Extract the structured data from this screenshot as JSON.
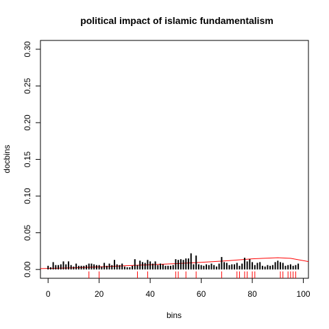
{
  "chart_data": {
    "type": "bar",
    "title": "political impact of islamic fundamentalism",
    "xlabel": "bins",
    "ylabel": "docbins",
    "xlim": [
      -3,
      102
    ],
    "ylim": [
      -0.012,
      0.312
    ],
    "xticks": [
      0,
      20,
      40,
      60,
      80,
      100
    ],
    "yticks": [
      0.0,
      0.05,
      0.1,
      0.15,
      0.2,
      0.25,
      0.3
    ],
    "ytick_labels": [
      "0.00",
      "0.05",
      "0.10",
      "0.15",
      "0.20",
      "0.25",
      "0.30"
    ],
    "grid": false,
    "bar_color": "#000000",
    "rug_color": "#ff0000",
    "curve_color": "#ff0000",
    "bars": {
      "x": [
        0,
        1,
        2,
        3,
        4,
        5,
        6,
        7,
        8,
        9,
        10,
        11,
        12,
        13,
        14,
        15,
        16,
        17,
        18,
        19,
        20,
        21,
        22,
        23,
        24,
        25,
        26,
        27,
        28,
        29,
        30,
        31,
        32,
        33,
        34,
        35,
        36,
        37,
        38,
        39,
        40,
        41,
        42,
        43,
        44,
        45,
        46,
        47,
        48,
        49,
        50,
        51,
        52,
        53,
        54,
        55,
        56,
        57,
        58,
        59,
        60,
        61,
        62,
        63,
        64,
        65,
        66,
        67,
        68,
        69,
        70,
        71,
        72,
        73,
        74,
        75,
        76,
        77,
        78,
        79,
        80,
        81,
        82,
        83,
        84,
        85,
        86,
        87,
        88,
        89,
        90,
        91,
        92,
        93,
        94,
        95,
        96,
        97,
        98
      ],
      "y": [
        0.005,
        0.003,
        0.01,
        0.006,
        0.006,
        0.007,
        0.011,
        0.007,
        0.011,
        0.006,
        0.004,
        0.008,
        0.005,
        0.005,
        0.005,
        0.006,
        0.008,
        0.008,
        0.007,
        0.006,
        0.006,
        0.004,
        0.009,
        0.005,
        0.008,
        0.006,
        0.013,
        0.007,
        0.006,
        0.008,
        0.004,
        0.003,
        0.003,
        0.005,
        0.014,
        0.006,
        0.012,
        0.01,
        0.009,
        0.013,
        0.011,
        0.008,
        0.011,
        0.006,
        0.008,
        0.007,
        0.005,
        0.005,
        0.005,
        0.006,
        0.014,
        0.013,
        0.014,
        0.013,
        0.015,
        0.015,
        0.022,
        0.007,
        0.019,
        0.007,
        0.006,
        0.005,
        0.007,
        0.006,
        0.008,
        0.006,
        0.004,
        0.008,
        0.017,
        0.01,
        0.009,
        0.006,
        0.007,
        0.007,
        0.009,
        0.005,
        0.008,
        0.016,
        0.011,
        0.014,
        0.01,
        0.006,
        0.009,
        0.01,
        0.005,
        0.004,
        0.006,
        0.005,
        0.006,
        0.01,
        0.012,
        0.01,
        0.009,
        0.005,
        0.006,
        0.007,
        0.005,
        0.006,
        0.008
      ]
    },
    "rug_x": [
      16,
      20,
      35,
      39,
      50,
      51,
      54,
      58,
      68,
      74,
      75,
      77,
      78,
      80,
      81,
      91,
      92,
      94,
      95,
      96,
      97
    ],
    "curve": {
      "x": [
        -3,
        10,
        20,
        30,
        40,
        50,
        60,
        70,
        80,
        90,
        95,
        102
      ],
      "y": [
        0.0012,
        0.0022,
        0.0035,
        0.005,
        0.0065,
        0.008,
        0.0098,
        0.0118,
        0.0145,
        0.016,
        0.0152,
        0.0108
      ]
    }
  }
}
